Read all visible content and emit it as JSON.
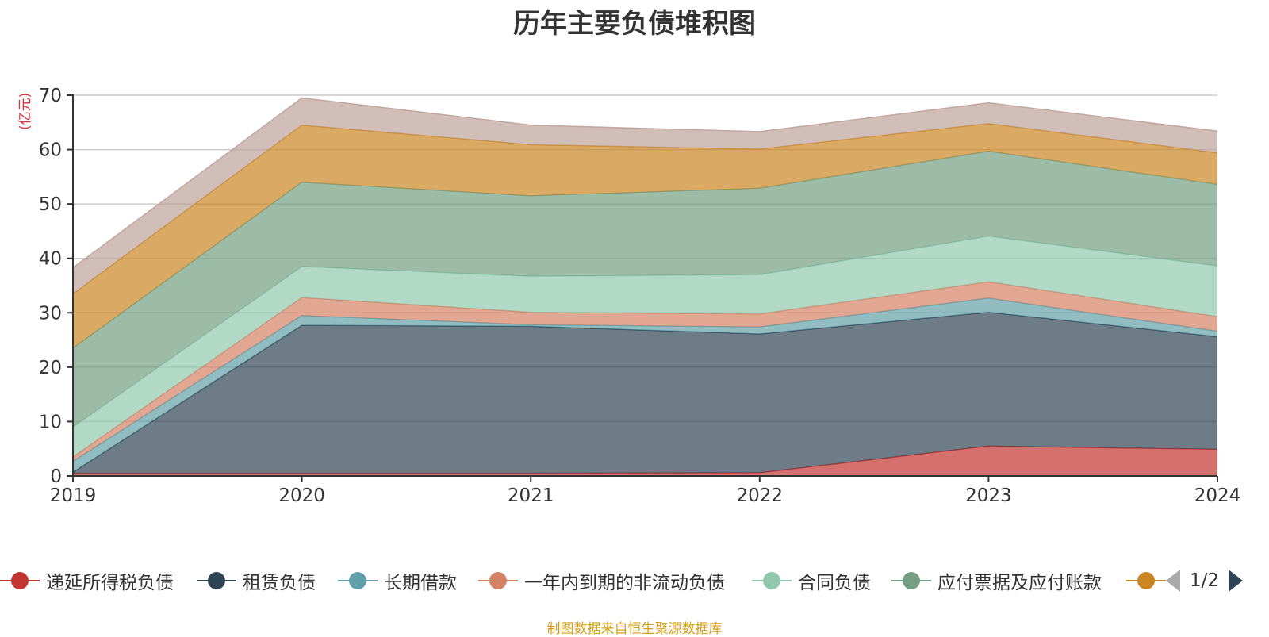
{
  "title": "历年主要负债堆积图",
  "unit_label": "(亿元)",
  "source_note": "制图数据来自恒生聚源数据库",
  "pager": {
    "text": "1/2"
  },
  "chart_data": {
    "type": "area",
    "stacked": true,
    "title": "历年主要负债堆积图",
    "ylabel": "(亿元)",
    "xlabel": "",
    "x": [
      "2019",
      "2020",
      "2021",
      "2022",
      "2023",
      "2024"
    ],
    "ylim": [
      0,
      70
    ],
    "yticks": [
      0,
      10,
      20,
      30,
      40,
      50,
      60,
      70
    ],
    "grid": true,
    "legend_position": "bottom",
    "series": [
      {
        "name": "递延所得税负债",
        "color": "#c23531",
        "values": [
          0.5,
          0.5,
          0.5,
          0.6,
          5.5,
          4.9
        ]
      },
      {
        "name": "租赁负债",
        "color": "#2f4554",
        "values": [
          0.2,
          27.2,
          27.0,
          25.5,
          24.6,
          20.7
        ]
      },
      {
        "name": "长期借款",
        "color": "#61a0a8",
        "values": [
          2.0,
          1.8,
          0.3,
          1.3,
          2.6,
          1.0
        ]
      },
      {
        "name": "一年内到期的非流动负债",
        "color": "#d48265",
        "values": [
          0.8,
          3.3,
          2.3,
          2.4,
          3.0,
          2.7
        ]
      },
      {
        "name": "合同负债",
        "color": "#91c7ae",
        "values": [
          5.5,
          5.7,
          6.6,
          7.2,
          8.4,
          9.3
        ]
      },
      {
        "name": "应付票据及应付账款",
        "color": "#749f83",
        "values": [
          14.5,
          15.5,
          14.8,
          15.9,
          15.6,
          15.0
        ]
      },
      {
        "name": "",
        "color": "#ca8622",
        "values": [
          10.0,
          10.5,
          9.4,
          7.2,
          5.1,
          5.8
        ]
      },
      {
        "name": "",
        "color": "#bda29a",
        "values": [
          4.8,
          5.0,
          3.6,
          3.2,
          3.8,
          4.0
        ]
      }
    ]
  }
}
